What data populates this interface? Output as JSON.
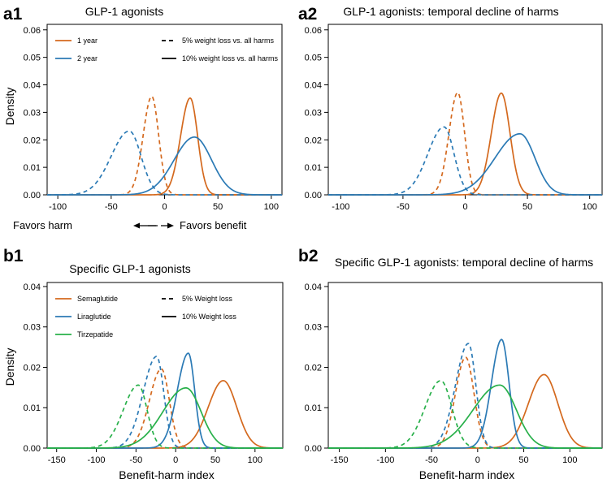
{
  "colors": {
    "one_year": "#d4691e",
    "two_year": "#2b7ab5",
    "semaglutide": "#d4691e",
    "liraglutide": "#2b7ab5",
    "tirzepatide": "#28b04a"
  },
  "annotation": {
    "left": "Favors harm",
    "right": "Favors benefit"
  },
  "chart_data": [
    {
      "id": "a1",
      "panel_label": "a1",
      "type": "line",
      "title": "GLP-1 agonists",
      "xlabel": "",
      "ylabel": "Density",
      "xlim": [
        -110,
        110
      ],
      "ylim": [
        0,
        0.062
      ],
      "xticks": [
        -100,
        -50,
        0,
        50,
        100
      ],
      "yticks": [
        0.0,
        0.01,
        0.02,
        0.03,
        0.04,
        0.05,
        0.06
      ],
      "ytick_labels": [
        "0.00",
        "0.01",
        "0.02",
        "0.03",
        "0.04",
        "0.05",
        "0.06"
      ],
      "legend": {
        "colors": [
          {
            "label": "1 year",
            "color_key": "one_year"
          },
          {
            "label": "2 year",
            "color_key": "two_year"
          }
        ],
        "styles": [
          {
            "label": "5% weight loss vs. all harms",
            "dash": true
          },
          {
            "label": "10% weight loss vs. all harms",
            "dash": false
          }
        ]
      },
      "series": [
        {
          "name": "1 year, 5% weight loss vs. all harms",
          "color_key": "one_year",
          "dash": true,
          "peaks": [
            {
              "mu": -12,
              "sl": 8,
              "sr": 6.5,
              "amp": 0.0358
            }
          ]
        },
        {
          "name": "1 year, 10% weight loss vs. all harms",
          "color_key": "one_year",
          "dash": false,
          "peaks": [
            {
              "mu": 24,
              "sl": 9,
              "sr": 7,
              "amp": 0.0352
            }
          ]
        },
        {
          "name": "2 year, 5% weight loss vs. all harms",
          "color_key": "two_year",
          "dash": true,
          "peaks": [
            {
              "mu": -33,
              "sl": 17,
              "sr": 11,
              "amp": 0.0232
            }
          ]
        },
        {
          "name": "2 year, 10% weight loss vs. all harms",
          "color_key": "two_year",
          "dash": false,
          "peaks": [
            {
              "mu": 28,
              "sl": 19,
              "sr": 16,
              "amp": 0.021
            }
          ]
        }
      ]
    },
    {
      "id": "a2",
      "panel_label": "a2",
      "type": "line",
      "title": "GLP-1 agonists: temporal decline of harms",
      "xlabel": "",
      "ylabel": "",
      "xlim": [
        -110,
        110
      ],
      "ylim": [
        0,
        0.062
      ],
      "xticks": [
        -100,
        -50,
        0,
        50,
        100
      ],
      "yticks": [
        0.0,
        0.01,
        0.02,
        0.03,
        0.04,
        0.05,
        0.06
      ],
      "ytick_labels": [
        "0.00",
        "0.01",
        "0.02",
        "0.03",
        "0.04",
        "0.05",
        "0.06"
      ],
      "series": [
        {
          "name": "1 year, 5% weight loss vs. all harms",
          "color_key": "one_year",
          "dash": true,
          "peaks": [
            {
              "mu": -6,
              "sl": 7,
              "sr": 5.5,
              "amp": 0.0372
            }
          ]
        },
        {
          "name": "1 year, 10% weight loss vs. all harms",
          "color_key": "one_year",
          "dash": false,
          "peaks": [
            {
              "mu": 29,
              "sl": 8,
              "sr": 7,
              "amp": 0.037
            }
          ]
        },
        {
          "name": "2 year, 5% weight loss vs. all harms",
          "color_key": "two_year",
          "dash": true,
          "peaks": [
            {
              "mu": -17,
              "sl": 13,
              "sr": 8,
              "amp": 0.0247
            }
          ]
        },
        {
          "name": "2 year, 10% weight loss vs. all harms",
          "color_key": "two_year",
          "dash": false,
          "peaks": [
            {
              "mu": 44,
              "sl": 20,
              "sr": 12,
              "amp": 0.0222
            }
          ]
        }
      ]
    },
    {
      "id": "b1",
      "panel_label": "b1",
      "type": "line",
      "title": "Specific GLP-1 agonists",
      "xlabel": "Benefit-harm index",
      "ylabel": "Density",
      "xlim": [
        -162,
        135
      ],
      "ylim": [
        0,
        0.041
      ],
      "xticks": [
        -150,
        -100,
        -50,
        0,
        50,
        100
      ],
      "yticks": [
        0.0,
        0.01,
        0.02,
        0.03,
        0.04
      ],
      "ytick_labels": [
        "0.00",
        "0.01",
        "0.02",
        "0.03",
        "0.04"
      ],
      "legend": {
        "colors": [
          {
            "label": "Semaglutide",
            "color_key": "semaglutide"
          },
          {
            "label": "Liraglutide",
            "color_key": "liraglutide"
          },
          {
            "label": "Tirzepatide",
            "color_key": "tirzepatide"
          }
        ],
        "styles": [
          {
            "label": "5% Weight loss",
            "dash": true
          },
          {
            "label": "10% Weight loss",
            "dash": false
          }
        ]
      },
      "series": [
        {
          "name": "Semaglutide, 5% Weight loss",
          "color_key": "semaglutide",
          "dash": true,
          "peaks": [
            {
              "mu": -18,
              "sl": 15,
              "sr": 10,
              "amp": 0.0196
            }
          ]
        },
        {
          "name": "Semaglutide, 10% Weight loss",
          "color_key": "semaglutide",
          "dash": false,
          "peaks": [
            {
              "mu": 60,
              "sl": 19,
              "sr": 17,
              "amp": 0.0167
            }
          ]
        },
        {
          "name": "Liraglutide, 5% Weight loss",
          "color_key": "liraglutide",
          "dash": true,
          "peaks": [
            {
              "mu": -24,
              "sl": 17,
              "sr": 9,
              "amp": 0.0227
            }
          ]
        },
        {
          "name": "Liraglutide, 10% Weight loss",
          "color_key": "liraglutide",
          "dash": false,
          "peaks": [
            {
              "mu": 16,
              "sl": 14,
              "sr": 8,
              "amp": 0.0235
            }
          ]
        },
        {
          "name": "Tirzepatide, 5% Weight loss",
          "color_key": "tirzepatide",
          "dash": true,
          "peaks": [
            {
              "mu": -47,
              "sl": 19,
              "sr": 11,
              "amp": 0.0156
            }
          ]
        },
        {
          "name": "Tirzepatide, 10% Weight loss",
          "color_key": "tirzepatide",
          "dash": false,
          "peaks": [
            {
              "mu": 13,
              "sl": 29,
              "sr": 19,
              "amp": 0.0149
            }
          ]
        }
      ]
    },
    {
      "id": "b2",
      "panel_label": "b2",
      "type": "line",
      "title": "Specific GLP-1 agonists: temporal decline of harms",
      "xlabel": "Benefit-harm index",
      "ylabel": "",
      "xlim": [
        -162,
        135
      ],
      "ylim": [
        0,
        0.041
      ],
      "xticks": [
        -150,
        -100,
        -50,
        0,
        50,
        100
      ],
      "yticks": [
        0.0,
        0.01,
        0.02,
        0.03,
        0.04
      ],
      "ytick_labels": [
        "0.00",
        "0.01",
        "0.02",
        "0.03",
        "0.04"
      ],
      "series": [
        {
          "name": "Semaglutide, 5% Weight loss",
          "color_key": "semaglutide",
          "dash": true,
          "peaks": [
            {
              "mu": -13,
              "sl": 11,
              "sr": 9,
              "amp": 0.0225
            }
          ]
        },
        {
          "name": "Semaglutide, 10% Weight loss",
          "color_key": "semaglutide",
          "dash": false,
          "peaks": [
            {
              "mu": 72,
              "sl": 17,
              "sr": 15,
              "amp": 0.0182
            }
          ]
        },
        {
          "name": "Liraglutide, 5% Weight loss",
          "color_key": "liraglutide",
          "dash": true,
          "peaks": [
            {
              "mu": -10,
              "sl": 14,
              "sr": 8,
              "amp": 0.0259
            }
          ]
        },
        {
          "name": "Liraglutide, 10% Weight loss",
          "color_key": "liraglutide",
          "dash": false,
          "peaks": [
            {
              "mu": 26,
              "sl": 11,
              "sr": 8,
              "amp": 0.0269
            }
          ]
        },
        {
          "name": "Tirzepatide, 5% Weight loss",
          "color_key": "tirzepatide",
          "dash": true,
          "peaks": [
            {
              "mu": -40,
              "sl": 17,
              "sr": 12,
              "amp": 0.0167
            }
          ]
        },
        {
          "name": "Tirzepatide, 10% Weight loss",
          "color_key": "tirzepatide",
          "dash": false,
          "peaks": [
            {
              "mu": 24,
              "sl": 29,
              "sr": 18,
              "amp": 0.0156
            }
          ]
        }
      ]
    }
  ]
}
